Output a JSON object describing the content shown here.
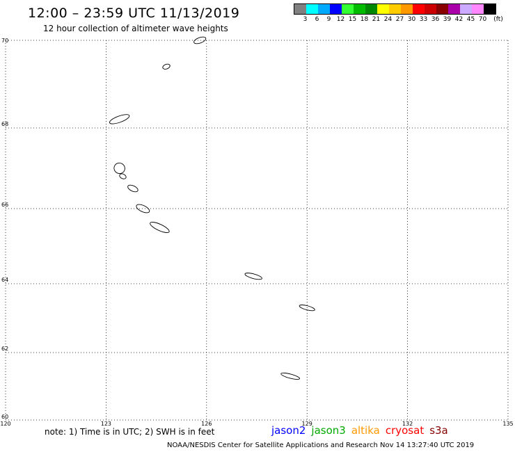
{
  "header": {
    "title": "12:00 – 23:59 UTC 11/13/2019",
    "subtitle": "12 hour collection of altimeter wave heights"
  },
  "legend": {
    "unit": "(ft)",
    "colors": [
      "#808080",
      "#00ffff",
      "#00aaff",
      "#0000ff",
      "#33ff33",
      "#00bb00",
      "#008800",
      "#ffff00",
      "#ffcc00",
      "#ff9900",
      "#ff0000",
      "#cc0000",
      "#880000",
      "#aa00aa",
      "#ccaaff",
      "#ff88ff",
      "#000000"
    ],
    "labels": [
      "3",
      "6",
      "9",
      "12",
      "15",
      "18",
      "21",
      "24",
      "27",
      "30",
      "33",
      "36",
      "39",
      "42",
      "45",
      "70"
    ]
  },
  "map": {
    "lon_ticks": [
      "120",
      "123",
      "126",
      "129",
      "132",
      "135"
    ],
    "lat_ticks": [
      "60",
      "62",
      "64",
      "66",
      "68",
      "70"
    ],
    "lon_range": [
      120,
      135
    ],
    "lat_range": [
      60,
      70
    ],
    "grid": true,
    "contours": [
      {
        "lon": 125.8,
        "lat": 70.0,
        "len": 0.25,
        "w": 0.08
      },
      {
        "lon": 124.8,
        "lat": 69.4,
        "len": 0.1,
        "w": 0.06
      },
      {
        "lon": 123.4,
        "lat": 68.2,
        "len": 0.5,
        "w": 0.1
      },
      {
        "lon": 123.4,
        "lat": 67.0,
        "len": 0.2,
        "w": 0.2
      },
      {
        "lon": 123.5,
        "lat": 66.8,
        "len": 0.08,
        "w": 0.06
      },
      {
        "lon": 123.8,
        "lat": 66.5,
        "len": 0.2,
        "w": 0.08
      },
      {
        "lon": 124.1,
        "lat": 66.0,
        "len": 0.3,
        "w": 0.1
      },
      {
        "lon": 124.6,
        "lat": 65.5,
        "len": 0.5,
        "w": 0.1
      },
      {
        "lon": 127.4,
        "lat": 64.2,
        "len": 0.4,
        "w": 0.06
      },
      {
        "lon": 129.0,
        "lat": 63.3,
        "len": 0.35,
        "w": 0.05
      },
      {
        "lon": 128.5,
        "lat": 61.3,
        "len": 0.45,
        "w": 0.05
      }
    ]
  },
  "footer": {
    "note": "note:  1) Time is in UTC;  2) SWH is in feet",
    "satellites": [
      {
        "name": "jason2",
        "color": "#0000ff"
      },
      {
        "name": "jason3",
        "color": "#00aa00"
      },
      {
        "name": "altika",
        "color": "#ff9900"
      },
      {
        "name": "cryosat",
        "color": "#ff0000"
      },
      {
        "name": "s3a",
        "color": "#880000"
      }
    ],
    "credit": "NOAA/NESDIS Center for Satellite Applications and Research    Nov 14 13:27:40 UTC 2019"
  }
}
